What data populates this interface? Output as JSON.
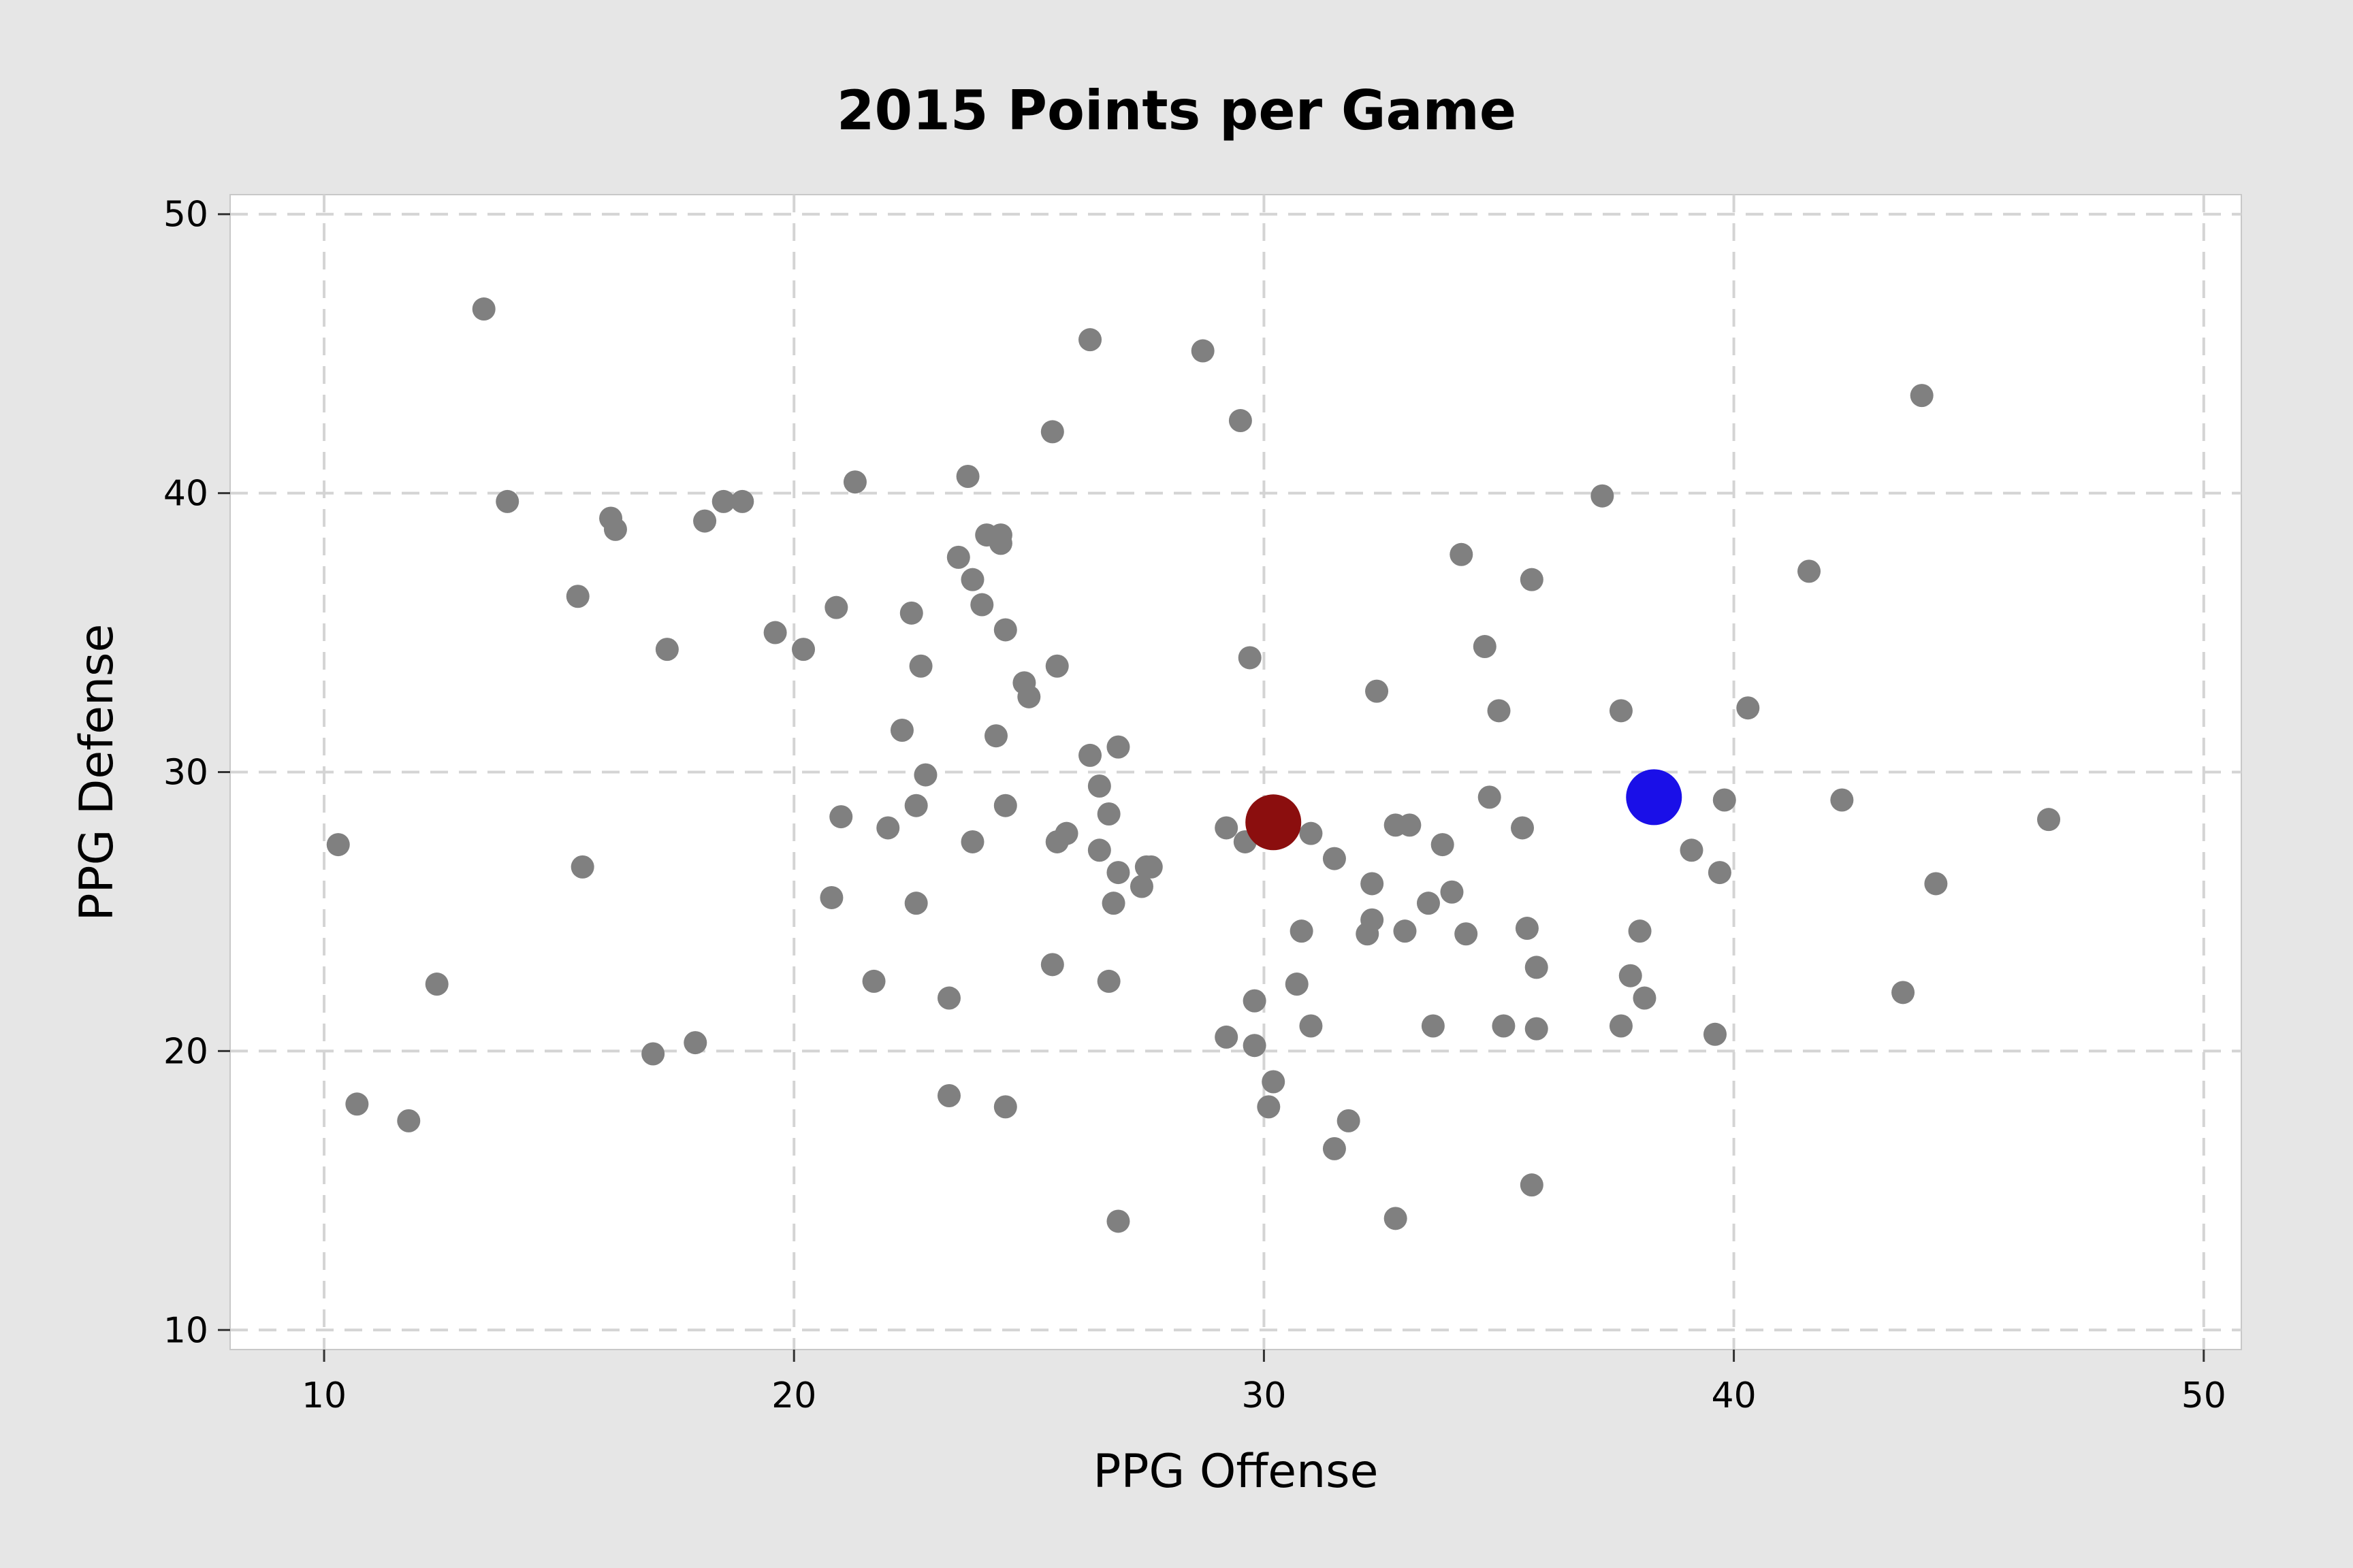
{
  "chart_data": {
    "type": "scatter",
    "title": "2015 Points per Game",
    "xlabel": "PPG Offense",
    "ylabel": "PPG Defense",
    "xlim": [
      8,
      50.8
    ],
    "ylim": [
      9.3,
      50.7
    ],
    "xticks": [
      10,
      20,
      30,
      40,
      50
    ],
    "yticks": [
      10,
      20,
      30,
      40,
      50
    ],
    "grid": true,
    "colors": {
      "points": "#808080",
      "highlight_red": "#8b0e0e",
      "highlight_blue": "#1a0fe8"
    },
    "series": [
      {
        "points": [
          [
            13.4,
            46.6
          ],
          [
            26.3,
            45.5
          ],
          [
            28.7,
            45.1
          ],
          [
            29.5,
            42.6
          ],
          [
            44.0,
            43.5
          ],
          [
            25.5,
            42.2
          ],
          [
            13.9,
            39.7
          ],
          [
            16.1,
            39.1
          ],
          [
            16.2,
            38.7
          ],
          [
            18.1,
            39.0
          ],
          [
            18.5,
            39.7
          ],
          [
            18.9,
            39.7
          ],
          [
            21.3,
            40.4
          ],
          [
            23.7,
            40.6
          ],
          [
            37.2,
            39.9
          ],
          [
            24.1,
            38.5
          ],
          [
            24.4,
            38.5
          ],
          [
            24.4,
            38.2
          ],
          [
            23.5,
            37.7
          ],
          [
            23.8,
            36.9
          ],
          [
            34.2,
            37.8
          ],
          [
            35.7,
            36.9
          ],
          [
            41.6,
            37.2
          ],
          [
            15.4,
            36.3
          ],
          [
            24.0,
            36.0
          ],
          [
            20.9,
            35.9
          ],
          [
            22.5,
            35.7
          ],
          [
            19.6,
            35.0
          ],
          [
            24.5,
            35.1
          ],
          [
            17.3,
            34.4
          ],
          [
            20.2,
            34.4
          ],
          [
            22.7,
            33.8
          ],
          [
            25.6,
            33.8
          ],
          [
            29.7,
            34.1
          ],
          [
            34.7,
            34.5
          ],
          [
            24.9,
            33.2
          ],
          [
            25.0,
            32.7
          ],
          [
            32.4,
            32.9
          ],
          [
            35.0,
            32.2
          ],
          [
            37.6,
            32.2
          ],
          [
            40.3,
            32.3
          ],
          [
            22.3,
            31.5
          ],
          [
            24.3,
            31.3
          ],
          [
            26.3,
            30.6
          ],
          [
            26.9,
            30.9
          ],
          [
            22.8,
            29.9
          ],
          [
            26.5,
            29.5
          ],
          [
            22.6,
            28.8
          ],
          [
            24.5,
            28.8
          ],
          [
            34.8,
            29.1
          ],
          [
            39.8,
            29.0
          ],
          [
            42.3,
            29.0
          ],
          [
            21.0,
            28.4
          ],
          [
            26.7,
            28.5
          ],
          [
            22.0,
            28.0
          ],
          [
            29.2,
            28.0
          ],
          [
            29.6,
            27.5
          ],
          [
            32.8,
            28.1
          ],
          [
            33.1,
            28.1
          ],
          [
            35.5,
            28.0
          ],
          [
            46.7,
            28.3
          ],
          [
            10.3,
            27.4
          ],
          [
            23.8,
            27.5
          ],
          [
            25.6,
            27.5
          ],
          [
            25.8,
            27.8
          ],
          [
            26.5,
            27.2
          ],
          [
            31.0,
            27.8
          ],
          [
            31.5,
            26.9
          ],
          [
            33.8,
            27.4
          ],
          [
            39.1,
            27.2
          ],
          [
            15.5,
            26.6
          ],
          [
            26.9,
            26.4
          ],
          [
            27.5,
            26.6
          ],
          [
            27.6,
            26.6
          ],
          [
            27.4,
            25.9
          ],
          [
            32.3,
            26.0
          ],
          [
            34.0,
            25.7
          ],
          [
            39.7,
            26.4
          ],
          [
            44.3,
            26.0
          ],
          [
            20.8,
            25.5
          ],
          [
            22.6,
            25.3
          ],
          [
            26.8,
            25.3
          ],
          [
            33.5,
            25.3
          ],
          [
            32.3,
            24.7
          ],
          [
            32.2,
            24.2
          ],
          [
            30.8,
            24.3
          ],
          [
            33.0,
            24.3
          ],
          [
            34.3,
            24.2
          ],
          [
            35.6,
            24.4
          ],
          [
            38.0,
            24.3
          ],
          [
            25.5,
            23.1
          ],
          [
            35.8,
            23.0
          ],
          [
            12.4,
            22.4
          ],
          [
            21.7,
            22.5
          ],
          [
            26.7,
            22.5
          ],
          [
            30.7,
            22.4
          ],
          [
            37.8,
            22.7
          ],
          [
            23.3,
            21.9
          ],
          [
            29.8,
            21.8
          ],
          [
            38.1,
            21.9
          ],
          [
            43.6,
            22.1
          ],
          [
            17.0,
            19.9
          ],
          [
            17.9,
            20.3
          ],
          [
            29.2,
            20.5
          ],
          [
            29.8,
            20.2
          ],
          [
            31.0,
            20.9
          ],
          [
            33.6,
            20.9
          ],
          [
            35.1,
            20.9
          ],
          [
            35.8,
            20.8
          ],
          [
            37.6,
            20.9
          ],
          [
            39.6,
            20.6
          ],
          [
            10.7,
            18.1
          ],
          [
            11.8,
            17.5
          ],
          [
            23.3,
            18.4
          ],
          [
            24.5,
            18.0
          ],
          [
            30.1,
            18.0
          ],
          [
            30.2,
            18.9
          ],
          [
            31.8,
            17.5
          ],
          [
            31.5,
            16.5
          ],
          [
            35.7,
            15.2
          ],
          [
            26.9,
            13.9
          ],
          [
            32.8,
            14.0
          ]
        ]
      },
      {
        "points": [
          [
            30.2,
            28.2
          ]
        ]
      },
      {
        "points": [
          [
            38.3,
            29.1
          ]
        ]
      }
    ]
  }
}
